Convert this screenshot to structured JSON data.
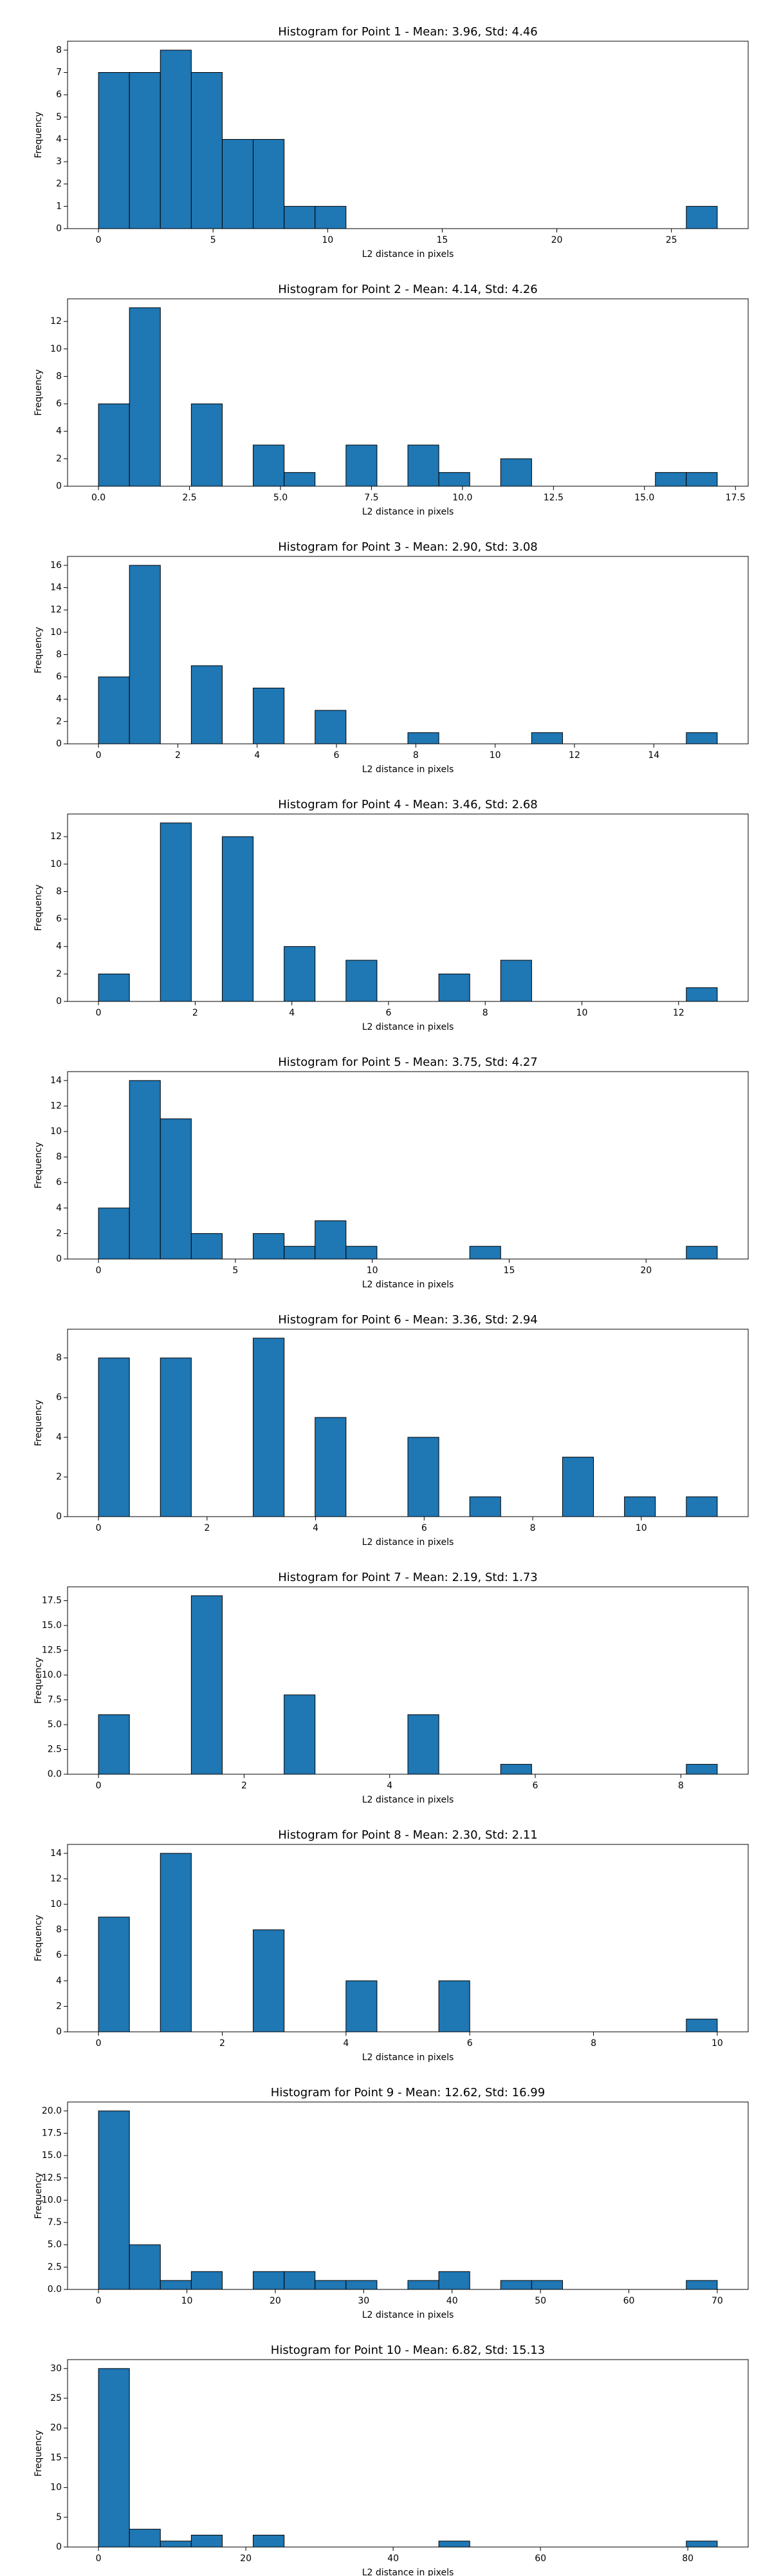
{
  "chart_data": [
    {
      "type": "histogram",
      "title": "Histogram for Point 1 - Mean: 3.96, Std: 4.46",
      "xlabel": "L2 distance in pixels",
      "ylabel": "Frequency",
      "color": "#1f77b4",
      "bins": [
        0,
        1.35,
        2.7,
        4.05,
        5.4,
        6.75,
        8.1,
        9.45,
        10.8,
        12.15,
        13.5,
        14.85,
        16.2,
        17.55,
        18.9,
        20.25,
        21.6,
        22.95,
        24.3,
        25.65,
        27
      ],
      "values": [
        7,
        7,
        8,
        7,
        4,
        4,
        1,
        1,
        0,
        0,
        0,
        0,
        0,
        0,
        0,
        0,
        0,
        0,
        0,
        1
      ],
      "xlim": [
        -1.35,
        28.35
      ],
      "ylim": [
        0,
        8.4
      ],
      "xticks": [
        0,
        5,
        10,
        15,
        20,
        25
      ],
      "yticks": [
        0,
        1,
        2,
        3,
        4,
        5,
        6,
        7,
        8
      ]
    },
    {
      "type": "histogram",
      "title": "Histogram for Point 2 - Mean: 4.14, Std: 4.26",
      "xlabel": "L2 distance in pixels",
      "ylabel": "Frequency",
      "color": "#1f77b4",
      "bins": [
        0,
        0.85,
        1.7,
        2.55,
        3.4,
        4.25,
        5.1,
        5.95,
        6.8,
        7.65,
        8.5,
        9.35,
        10.2,
        11.05,
        11.9,
        12.75,
        13.6,
        14.45,
        15.3,
        16.15,
        17
      ],
      "values": [
        6,
        13,
        0,
        6,
        0,
        3,
        1,
        0,
        3,
        0,
        3,
        1,
        0,
        2,
        0,
        0,
        0,
        0,
        1,
        1
      ],
      "xlim": [
        -0.85,
        17.85
      ],
      "ylim": [
        0,
        13.65
      ],
      "xticks": [
        {
          "value": 0,
          "label": "0.0"
        },
        2.5,
        {
          "value": 5,
          "label": "5.0"
        },
        7.5,
        {
          "value": 10,
          "label": "10.0"
        },
        12.5,
        {
          "value": 15,
          "label": "15.0"
        },
        17.5
      ],
      "yticks": [
        0,
        2,
        4,
        6,
        8,
        10,
        12
      ]
    },
    {
      "type": "histogram",
      "title": "Histogram for Point 3 - Mean: 2.90, Std: 3.08",
      "xlabel": "L2 distance in pixels",
      "ylabel": "Frequency",
      "color": "#1f77b4",
      "bins": [
        0,
        0.78,
        1.56,
        2.34,
        3.12,
        3.9,
        4.68,
        5.46,
        6.24,
        7.02,
        7.8,
        8.58,
        9.36,
        10.14,
        10.92,
        11.7,
        12.48,
        13.26,
        14.04,
        14.82,
        15.6
      ],
      "values": [
        6,
        16,
        0,
        7,
        0,
        5,
        0,
        3,
        0,
        0,
        1,
        0,
        0,
        0,
        1,
        0,
        0,
        0,
        0,
        1
      ],
      "xlim": [
        -0.78,
        16.38
      ],
      "ylim": [
        0,
        16.8
      ],
      "xticks": [
        0,
        2,
        4,
        6,
        8,
        10,
        12,
        14
      ],
      "yticks": [
        0,
        2,
        4,
        6,
        8,
        10,
        12,
        14,
        16
      ]
    },
    {
      "type": "histogram",
      "title": "Histogram for Point 4 - Mean: 3.46, Std: 2.68",
      "xlabel": "L2 distance in pixels",
      "ylabel": "Frequency",
      "color": "#1f77b4",
      "bins": [
        0,
        0.64,
        1.28,
        1.92,
        2.56,
        3.2,
        3.84,
        4.48,
        5.12,
        5.76,
        6.4,
        7.04,
        7.68,
        8.32,
        8.96,
        9.6,
        10.24,
        10.88,
        11.52,
        12.16,
        12.8
      ],
      "values": [
        2,
        0,
        13,
        0,
        12,
        0,
        4,
        0,
        3,
        0,
        0,
        2,
        0,
        3,
        0,
        0,
        0,
        0,
        0,
        1
      ],
      "xlim": [
        -0.64,
        13.44
      ],
      "ylim": [
        0,
        13.65
      ],
      "xticks": [
        0,
        2,
        4,
        6,
        8,
        10,
        12
      ],
      "yticks": [
        0,
        2,
        4,
        6,
        8,
        10,
        12
      ]
    },
    {
      "type": "histogram",
      "title": "Histogram for Point 5 - Mean: 3.75, Std: 4.27",
      "xlabel": "L2 distance in pixels",
      "ylabel": "Frequency",
      "color": "#1f77b4",
      "bins": [
        0,
        1.13,
        2.26,
        3.39,
        4.52,
        5.65,
        6.78,
        7.91,
        9.04,
        10.17,
        11.3,
        12.43,
        13.56,
        14.69,
        15.82,
        16.95,
        18.08,
        19.21,
        20.34,
        21.47,
        22.6
      ],
      "values": [
        4,
        14,
        11,
        2,
        0,
        2,
        1,
        3,
        1,
        0,
        0,
        0,
        1,
        0,
        0,
        0,
        0,
        0,
        0,
        1
      ],
      "xlim": [
        -1.13,
        23.73
      ],
      "ylim": [
        0,
        14.7
      ],
      "xticks": [
        0,
        5,
        10,
        15,
        20
      ],
      "yticks": [
        0,
        2,
        4,
        6,
        8,
        10,
        12,
        14
      ]
    },
    {
      "type": "histogram",
      "title": "Histogram for Point 6 - Mean: 3.36, Std: 2.94",
      "xlabel": "L2 distance in pixels",
      "ylabel": "Frequency",
      "color": "#1f77b4",
      "bins": [
        0,
        0.57,
        1.14,
        1.71,
        2.28,
        2.85,
        3.42,
        3.99,
        4.56,
        5.13,
        5.7,
        6.27,
        6.84,
        7.41,
        7.98,
        8.55,
        9.12,
        9.69,
        10.26,
        10.83,
        11.4
      ],
      "values": [
        8,
        0,
        8,
        0,
        0,
        9,
        0,
        5,
        0,
        0,
        4,
        0,
        1,
        0,
        0,
        3,
        0,
        1,
        0,
        1
      ],
      "xlim": [
        -0.57,
        11.97
      ],
      "ylim": [
        0,
        9.45
      ],
      "xticks": [
        0,
        2,
        4,
        6,
        8,
        10
      ],
      "yticks": [
        0,
        2,
        4,
        6,
        8
      ]
    },
    {
      "type": "histogram",
      "title": "Histogram for Point 7 - Mean: 2.19, Std: 1.73",
      "xlabel": "L2 distance in pixels",
      "ylabel": "Frequency",
      "color": "#1f77b4",
      "bins": [
        0,
        0.425,
        0.85,
        1.275,
        1.7,
        2.125,
        2.55,
        2.975,
        3.4,
        3.825,
        4.25,
        4.675,
        5.1,
        5.525,
        5.95,
        6.375,
        6.8,
        7.225,
        7.65,
        8.075,
        8.5
      ],
      "values": [
        6,
        0,
        0,
        18,
        0,
        0,
        8,
        0,
        0,
        0,
        6,
        0,
        0,
        1,
        0,
        0,
        0,
        0,
        0,
        1
      ],
      "xlim": [
        -0.425,
        8.925
      ],
      "ylim": [
        0,
        18.9
      ],
      "xticks": [
        0,
        2,
        4,
        6,
        8
      ],
      "yticks": [
        {
          "value": 0,
          "label": "0.0"
        },
        2.5,
        {
          "value": 5,
          "label": "5.0"
        },
        7.5,
        {
          "value": 10,
          "label": "10.0"
        },
        12.5,
        {
          "value": 15,
          "label": "15.0"
        },
        17.5
      ]
    },
    {
      "type": "histogram",
      "title": "Histogram for Point 8 - Mean: 2.30, Std: 2.11",
      "xlabel": "L2 distance in pixels",
      "ylabel": "Frequency",
      "color": "#1f77b4",
      "bins": [
        0,
        0.5,
        1,
        1.5,
        2,
        2.5,
        3,
        3.5,
        4,
        4.5,
        5,
        5.5,
        6,
        6.5,
        7,
        7.5,
        8,
        8.5,
        9,
        9.5,
        10
      ],
      "values": [
        9,
        0,
        14,
        0,
        0,
        8,
        0,
        0,
        4,
        0,
        0,
        4,
        0,
        0,
        0,
        0,
        0,
        0,
        0,
        1
      ],
      "xlim": [
        -0.5,
        10.5
      ],
      "ylim": [
        0,
        14.7
      ],
      "xticks": [
        0,
        2,
        4,
        6,
        8,
        10
      ],
      "yticks": [
        0,
        2,
        4,
        6,
        8,
        10,
        12,
        14
      ]
    },
    {
      "type": "histogram",
      "title": "Histogram for Point 9 - Mean: 12.62, Std: 16.99",
      "xlabel": "L2 distance in pixels",
      "ylabel": "Frequency",
      "color": "#1f77b4",
      "bins": [
        0,
        3.5,
        7,
        10.5,
        14,
        17.5,
        21,
        24.5,
        28,
        31.5,
        35,
        38.5,
        42,
        45.5,
        49,
        52.5,
        56,
        59.5,
        63,
        66.5,
        70
      ],
      "values": [
        20,
        5,
        1,
        2,
        0,
        2,
        2,
        1,
        1,
        0,
        1,
        2,
        0,
        1,
        1,
        0,
        0,
        0,
        0,
        1
      ],
      "xlim": [
        -3.5,
        73.5
      ],
      "ylim": [
        0,
        21
      ],
      "xticks": [
        0,
        10,
        20,
        30,
        40,
        50,
        60,
        70
      ],
      "yticks": [
        {
          "value": 0,
          "label": "0.0"
        },
        2.5,
        {
          "value": 5,
          "label": "5.0"
        },
        7.5,
        {
          "value": 10,
          "label": "10.0"
        },
        12.5,
        {
          "value": 15,
          "label": "15.0"
        },
        17.5,
        {
          "value": 20,
          "label": "20.0"
        }
      ]
    },
    {
      "type": "histogram",
      "title": "Histogram for Point 10 - Mean: 6.82, Std: 15.13",
      "xlabel": "L2 distance in pixels",
      "ylabel": "Frequency",
      "color": "#1f77b4",
      "bins": [
        0,
        4.2,
        8.4,
        12.6,
        16.8,
        21,
        25.2,
        29.4,
        33.6,
        37.8,
        42,
        46.2,
        50.4,
        54.6,
        58.8,
        63,
        67.2,
        71.4,
        75.6,
        79.8,
        84
      ],
      "values": [
        30,
        3,
        1,
        2,
        0,
        2,
        0,
        0,
        0,
        0,
        0,
        1,
        0,
        0,
        0,
        0,
        0,
        0,
        0,
        1
      ],
      "xlim": [
        -4.2,
        88.2
      ],
      "ylim": [
        0,
        31.5
      ],
      "xticks": [
        0,
        20,
        40,
        60,
        80
      ],
      "yticks": [
        0,
        5,
        10,
        15,
        20,
        25,
        30
      ]
    }
  ]
}
